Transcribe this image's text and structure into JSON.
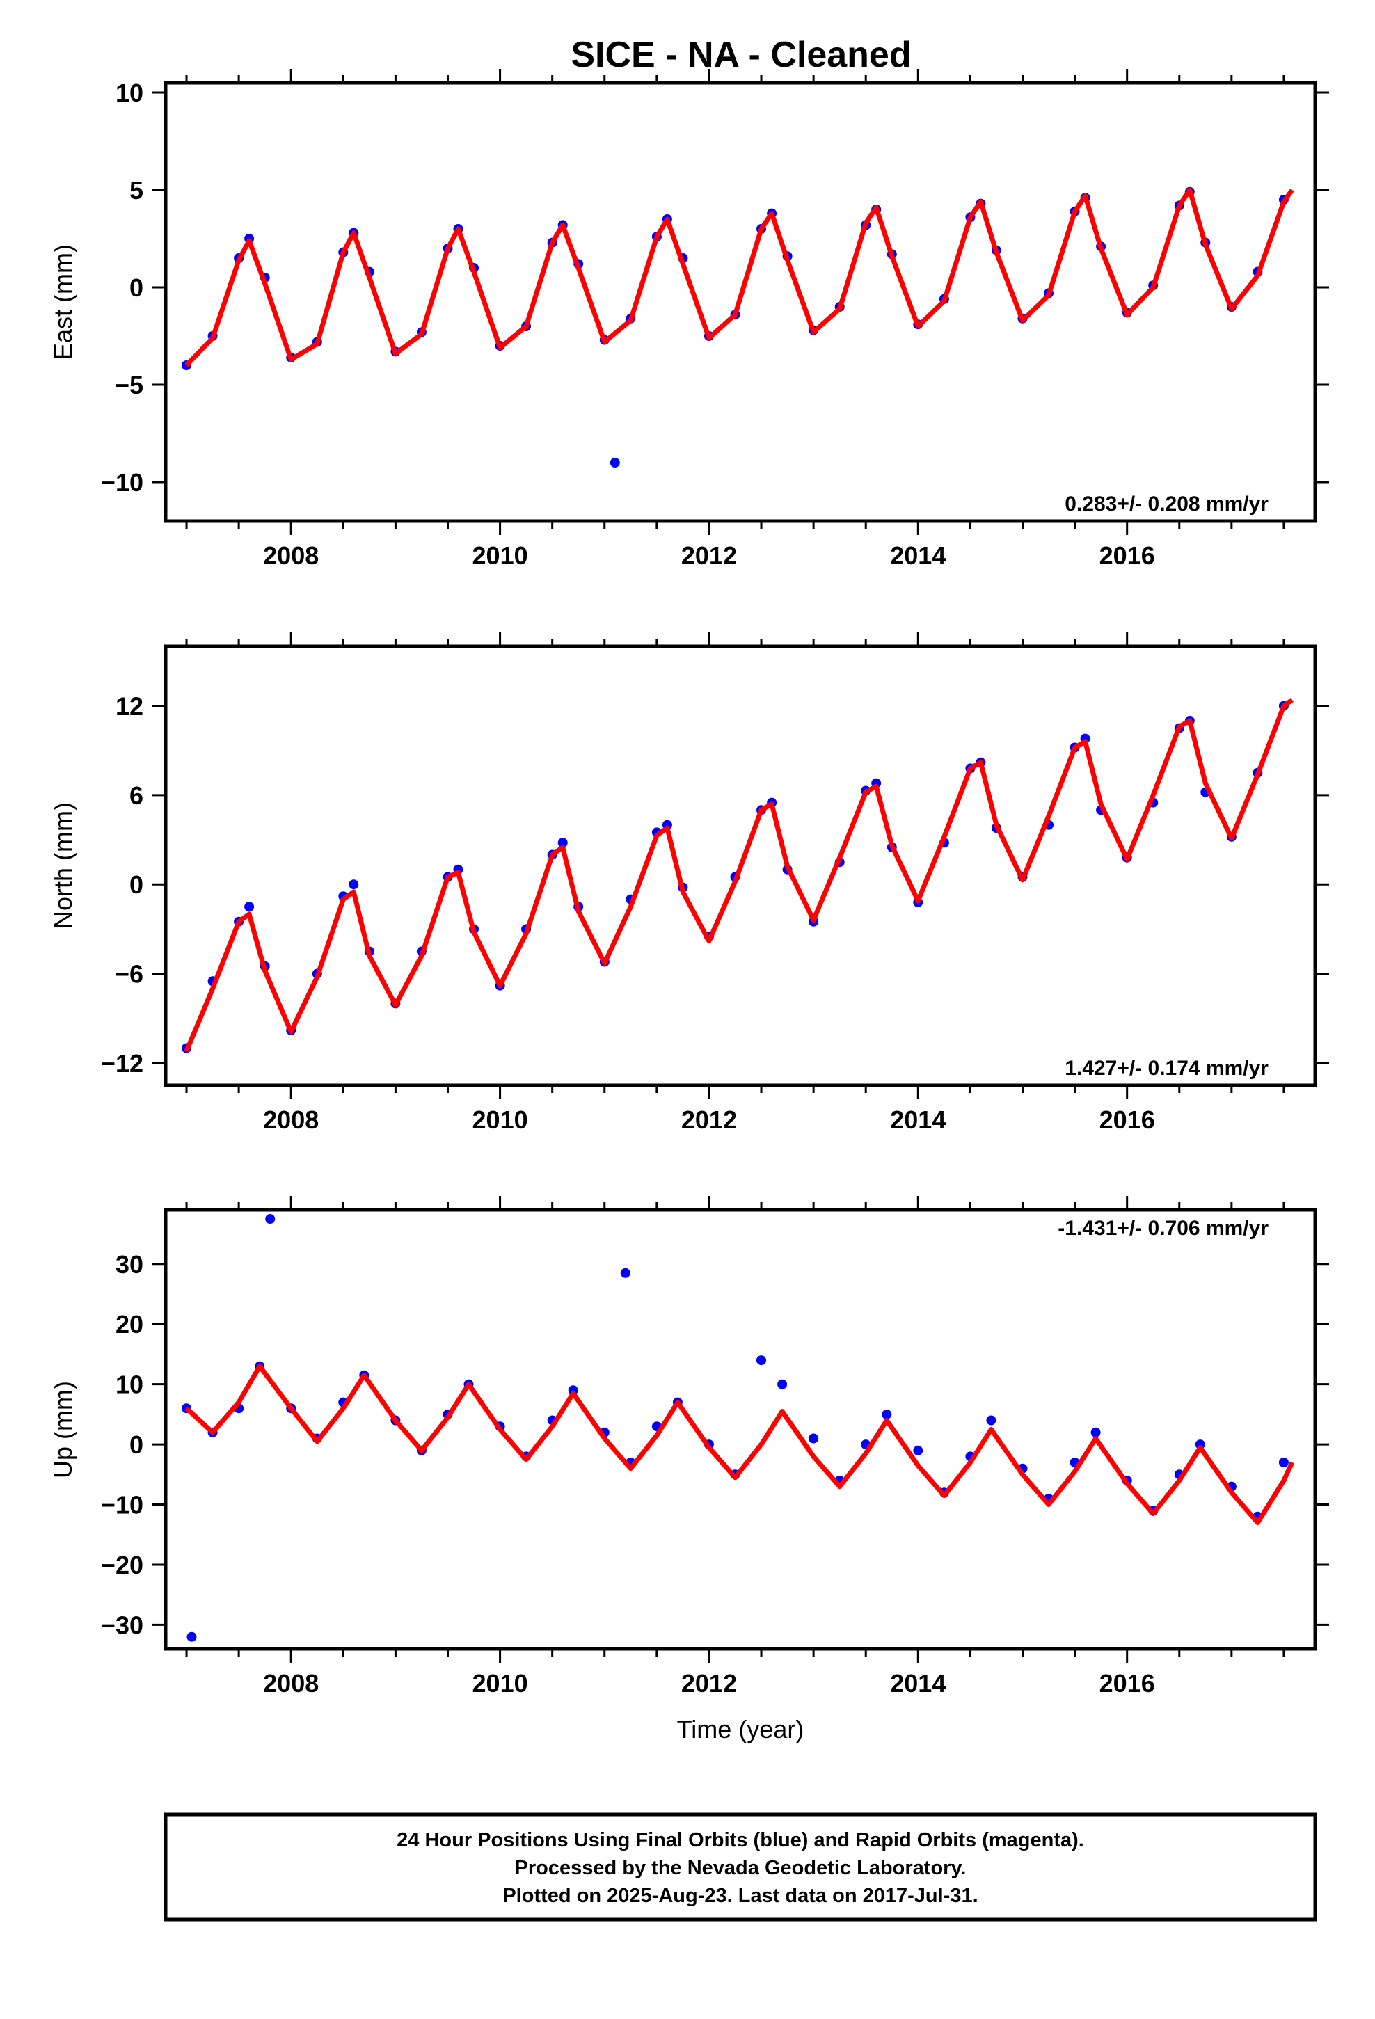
{
  "title": "SICE  - NA - Cleaned",
  "x_axis_label": "Time (year)",
  "colors": {
    "points": "#0000ff",
    "fit": "#ff0000",
    "frame": "#000000",
    "background": "#ffffff"
  },
  "caption": {
    "lines": [
      "24 Hour Positions Using Final Orbits (blue) and Rapid Orbits (magenta).",
      "Processed by the Nevada Geodetic Laboratory.",
      "Plotted on 2025-Aug-23. Last data on 2017-Jul-31."
    ]
  },
  "chart_data": [
    {
      "type": "scatter",
      "panel": "east",
      "ylabel": "East (mm)",
      "xlim": [
        2006.8,
        2017.8
      ],
      "ylim": [
        -12,
        10.5
      ],
      "xticks": [
        2008,
        2010,
        2012,
        2014,
        2016
      ],
      "yticks": [
        -10,
        -5,
        0,
        5,
        10
      ],
      "rate": "0.283+/- 0.208 mm/yr",
      "grid": false,
      "series": [
        {
          "kind": "daily_positions",
          "color": "#0000ff",
          "x": [
            2007.0,
            2007.25,
            2007.5,
            2007.6,
            2007.75,
            2008.0,
            2008.25,
            2008.5,
            2008.6,
            2008.75,
            2009.0,
            2009.25,
            2009.5,
            2009.6,
            2009.75,
            2010.0,
            2010.25,
            2010.5,
            2010.6,
            2010.75,
            2011.0,
            2011.1,
            2011.25,
            2011.5,
            2011.6,
            2011.75,
            2012.0,
            2012.25,
            2012.5,
            2012.6,
            2012.75,
            2013.0,
            2013.25,
            2013.5,
            2013.6,
            2013.75,
            2014.0,
            2014.25,
            2014.5,
            2014.6,
            2014.75,
            2015.0,
            2015.25,
            2015.5,
            2015.6,
            2015.75,
            2016.0,
            2016.25,
            2016.5,
            2016.6,
            2016.75,
            2017.0,
            2017.25,
            2017.5
          ],
          "y": [
            -4.0,
            -2.5,
            1.5,
            2.5,
            0.5,
            -3.6,
            -2.8,
            1.8,
            2.8,
            0.8,
            -3.3,
            -2.3,
            2.0,
            3.0,
            1.0,
            -3.0,
            -2.0,
            2.3,
            3.2,
            1.2,
            -2.7,
            -9.0,
            -1.6,
            2.6,
            3.5,
            1.5,
            -2.5,
            -1.4,
            3.0,
            3.8,
            1.6,
            -2.2,
            -1.0,
            3.2,
            4.0,
            1.7,
            -1.9,
            -0.6,
            3.6,
            4.3,
            1.9,
            -1.6,
            -0.3,
            3.9,
            4.6,
            2.1,
            -1.3,
            0.1,
            4.2,
            4.9,
            2.3,
            -1.0,
            0.8,
            4.5
          ]
        },
        {
          "kind": "fit",
          "color": "#ff0000",
          "x": [
            2007.0,
            2007.25,
            2007.5,
            2007.6,
            2007.75,
            2008.0,
            2008.25,
            2008.5,
            2008.6,
            2008.75,
            2009.0,
            2009.25,
            2009.5,
            2009.6,
            2009.75,
            2010.0,
            2010.25,
            2010.5,
            2010.6,
            2010.75,
            2011.0,
            2011.25,
            2011.5,
            2011.6,
            2011.75,
            2012.0,
            2012.25,
            2012.5,
            2012.6,
            2012.75,
            2013.0,
            2013.25,
            2013.5,
            2013.6,
            2013.75,
            2014.0,
            2014.25,
            2014.5,
            2014.6,
            2014.75,
            2015.0,
            2015.25,
            2015.5,
            2015.6,
            2015.75,
            2016.0,
            2016.25,
            2016.5,
            2016.6,
            2016.75,
            2017.0,
            2017.25,
            2017.5,
            2017.58
          ],
          "y": [
            -4.0,
            -2.6,
            1.4,
            2.4,
            0.2,
            -3.7,
            -2.9,
            1.8,
            2.8,
            0.5,
            -3.4,
            -2.4,
            2.0,
            3.0,
            0.8,
            -3.1,
            -2.0,
            2.3,
            3.2,
            1.0,
            -2.8,
            -1.7,
            2.6,
            3.5,
            1.2,
            -2.6,
            -1.4,
            3.0,
            3.8,
            1.4,
            -2.3,
            -1.1,
            3.3,
            4.1,
            1.6,
            -2.0,
            -0.7,
            3.6,
            4.4,
            1.8,
            -1.7,
            -0.4,
            3.9,
            4.7,
            2.0,
            -1.4,
            0.0,
            4.2,
            5.0,
            2.2,
            -1.1,
            0.6,
            4.4,
            5.0
          ]
        }
      ]
    },
    {
      "type": "scatter",
      "panel": "north",
      "ylabel": "North (mm)",
      "xlim": [
        2006.8,
        2017.8
      ],
      "ylim": [
        -13.5,
        16
      ],
      "xticks": [
        2008,
        2010,
        2012,
        2014,
        2016
      ],
      "yticks": [
        -12,
        -6,
        0,
        6,
        12
      ],
      "rate": "1.427+/- 0.174 mm/yr",
      "grid": false,
      "series": [
        {
          "kind": "daily_positions",
          "color": "#0000ff",
          "x": [
            2007.0,
            2007.25,
            2007.5,
            2007.6,
            2007.75,
            2008.0,
            2008.25,
            2008.5,
            2008.6,
            2008.75,
            2009.0,
            2009.25,
            2009.5,
            2009.6,
            2009.75,
            2010.0,
            2010.25,
            2010.5,
            2010.6,
            2010.75,
            2011.0,
            2011.25,
            2011.5,
            2011.6,
            2011.75,
            2012.0,
            2012.25,
            2012.5,
            2012.6,
            2012.75,
            2013.0,
            2013.25,
            2013.5,
            2013.6,
            2013.75,
            2014.0,
            2014.25,
            2014.5,
            2014.6,
            2014.75,
            2015.0,
            2015.25,
            2015.5,
            2015.6,
            2015.75,
            2016.0,
            2016.25,
            2016.5,
            2016.6,
            2016.75,
            2017.0,
            2017.25,
            2017.5
          ],
          "y": [
            -11.0,
            -6.5,
            -2.5,
            -1.5,
            -5.5,
            -9.8,
            -6.0,
            -0.8,
            0.0,
            -4.5,
            -8.0,
            -4.5,
            0.5,
            1.0,
            -3.0,
            -6.8,
            -3.0,
            2.0,
            2.8,
            -1.5,
            -5.2,
            -1.0,
            3.5,
            4.0,
            -0.2,
            -3.5,
            0.5,
            5.0,
            5.5,
            1.0,
            -2.5,
            1.5,
            6.3,
            6.8,
            2.5,
            -1.2,
            2.8,
            7.8,
            8.2,
            3.8,
            0.5,
            4.0,
            9.2,
            9.8,
            5.0,
            1.8,
            5.5,
            10.5,
            11.0,
            6.2,
            3.2,
            7.5,
            12.0
          ]
        },
        {
          "kind": "fit",
          "color": "#ff0000",
          "x": [
            2007.0,
            2007.25,
            2007.5,
            2007.6,
            2007.75,
            2008.0,
            2008.25,
            2008.5,
            2008.6,
            2008.75,
            2009.0,
            2009.25,
            2009.5,
            2009.6,
            2009.75,
            2010.0,
            2010.25,
            2010.5,
            2010.6,
            2010.75,
            2011.0,
            2011.25,
            2011.5,
            2011.6,
            2011.75,
            2012.0,
            2012.25,
            2012.5,
            2012.6,
            2012.75,
            2013.0,
            2013.25,
            2013.5,
            2013.6,
            2013.75,
            2014.0,
            2014.25,
            2014.5,
            2014.6,
            2014.75,
            2015.0,
            2015.25,
            2015.5,
            2015.6,
            2015.75,
            2016.0,
            2016.25,
            2016.5,
            2016.6,
            2016.75,
            2017.0,
            2017.25,
            2017.5,
            2017.58
          ],
          "y": [
            -11.2,
            -7.0,
            -2.5,
            -2.0,
            -5.8,
            -9.9,
            -6.2,
            -1.0,
            -0.5,
            -4.8,
            -8.1,
            -4.8,
            0.5,
            0.8,
            -3.2,
            -6.8,
            -3.3,
            2.0,
            2.5,
            -1.8,
            -5.3,
            -1.5,
            3.3,
            3.8,
            -0.5,
            -3.8,
            0.2,
            5.0,
            5.4,
            1.2,
            -2.4,
            1.8,
            6.2,
            6.6,
            2.6,
            -1.1,
            3.2,
            7.8,
            8.2,
            4.0,
            0.3,
            4.6,
            9.2,
            9.6,
            5.4,
            1.7,
            6.0,
            10.6,
            11.0,
            6.8,
            3.1,
            7.4,
            12.0,
            12.4
          ]
        }
      ]
    },
    {
      "type": "scatter",
      "panel": "up",
      "ylabel": "Up (mm)",
      "xlim": [
        2006.8,
        2017.8
      ],
      "ylim": [
        -34,
        39
      ],
      "xticks": [
        2008,
        2010,
        2012,
        2014,
        2016
      ],
      "yticks": [
        -30,
        -20,
        -10,
        0,
        10,
        20,
        30
      ],
      "rate": "-1.431+/- 0.706 mm/yr",
      "grid": false,
      "series": [
        {
          "kind": "daily_positions",
          "color": "#0000ff",
          "x": [
            2007.0,
            2007.05,
            2007.25,
            2007.5,
            2007.7,
            2007.8,
            2008.0,
            2008.25,
            2008.5,
            2008.7,
            2009.0,
            2009.25,
            2009.5,
            2009.7,
            2010.0,
            2010.25,
            2010.5,
            2010.7,
            2011.0,
            2011.2,
            2011.25,
            2011.5,
            2011.7,
            2012.0,
            2012.25,
            2012.5,
            2012.7,
            2013.0,
            2013.25,
            2013.5,
            2013.7,
            2014.0,
            2014.25,
            2014.5,
            2014.7,
            2015.0,
            2015.25,
            2015.5,
            2015.7,
            2016.0,
            2016.25,
            2016.5,
            2016.7,
            2017.0,
            2017.25,
            2017.5
          ],
          "y": [
            6.0,
            -32.0,
            2.0,
            6.0,
            13.0,
            37.5,
            6.0,
            1.0,
            7.0,
            11.5,
            4.0,
            -1.0,
            5.0,
            10.0,
            3.0,
            -2.0,
            4.0,
            9.0,
            2.0,
            28.5,
            -3.0,
            3.0,
            7.0,
            0.0,
            -5.0,
            14.0,
            10.0,
            1.0,
            -6.0,
            0.0,
            5.0,
            -1.0,
            -8.0,
            -2.0,
            4.0,
            -4.0,
            -9.0,
            -3.0,
            2.0,
            -6.0,
            -11.0,
            -5.0,
            0.0,
            -7.0,
            -12.0,
            -3.0
          ]
        },
        {
          "kind": "fit",
          "color": "#ff0000",
          "x": [
            2007.0,
            2007.25,
            2007.5,
            2007.7,
            2008.0,
            2008.25,
            2008.5,
            2008.7,
            2009.0,
            2009.25,
            2009.5,
            2009.7,
            2010.0,
            2010.25,
            2010.5,
            2010.7,
            2011.0,
            2011.25,
            2011.5,
            2011.7,
            2012.0,
            2012.25,
            2012.5,
            2012.7,
            2013.0,
            2013.25,
            2013.5,
            2013.7,
            2014.0,
            2014.25,
            2014.5,
            2014.7,
            2015.0,
            2015.25,
            2015.5,
            2015.7,
            2016.0,
            2016.25,
            2016.5,
            2016.7,
            2017.0,
            2017.25,
            2017.5,
            2017.58
          ],
          "y": [
            6.0,
            2.0,
            7.0,
            13.0,
            6.0,
            0.5,
            6.0,
            11.5,
            4.0,
            -1.0,
            4.5,
            10.0,
            2.5,
            -2.5,
            3.0,
            8.5,
            1.0,
            -4.0,
            1.5,
            7.0,
            -0.5,
            -5.5,
            0.0,
            5.5,
            -2.0,
            -7.0,
            -1.5,
            4.0,
            -3.5,
            -8.5,
            -3.0,
            2.5,
            -5.0,
            -10.0,
            -4.5,
            1.0,
            -6.5,
            -11.5,
            -6.0,
            -0.5,
            -8.0,
            -13.0,
            -6.0,
            -3.0
          ]
        }
      ]
    }
  ]
}
